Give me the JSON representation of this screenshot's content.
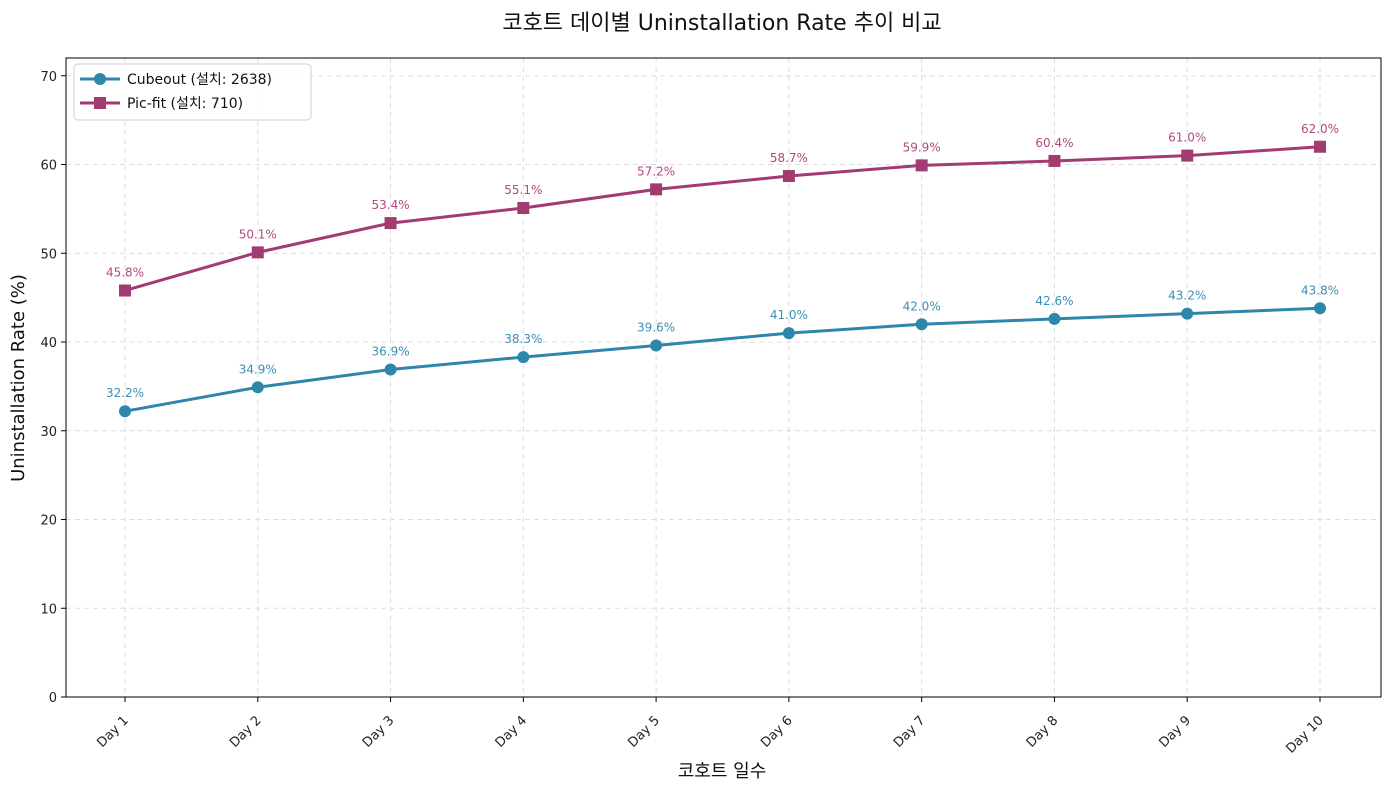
{
  "chart_data": {
    "type": "line",
    "title": "코호트 데이별 Uninstallation Rate 추이 비교",
    "xlabel": "코호트 일수",
    "ylabel": "Uninstallation Rate (%)",
    "categories": [
      "Day 1",
      "Day 2",
      "Day 3",
      "Day 4",
      "Day 5",
      "Day 6",
      "Day 7",
      "Day 8",
      "Day 9",
      "Day 10"
    ],
    "ylim": [
      0,
      72
    ],
    "yticks": [
      0,
      10,
      20,
      30,
      40,
      50,
      60,
      70
    ],
    "grid": true,
    "legend_position": "top-left",
    "series": [
      {
        "name": "Cubeout (설치: 2638)",
        "color": "#2e86ab",
        "label_color": "#3a8fb7",
        "marker": "circle",
        "values": [
          32.2,
          34.9,
          36.9,
          38.3,
          39.6,
          41.0,
          42.0,
          42.6,
          43.2,
          43.8
        ],
        "labels": [
          "32.2%",
          "34.9%",
          "36.9%",
          "38.3%",
          "39.6%",
          "41.0%",
          "42.0%",
          "42.6%",
          "43.2%",
          "43.8%"
        ]
      },
      {
        "name": "Pic-fit (설치: 710)",
        "color": "#a23b72",
        "label_color": "#b04a80",
        "marker": "square",
        "values": [
          45.8,
          50.1,
          53.4,
          55.1,
          57.2,
          58.7,
          59.9,
          60.4,
          61.0,
          62.0
        ],
        "labels": [
          "45.8%",
          "50.1%",
          "53.4%",
          "55.1%",
          "57.2%",
          "58.7%",
          "59.9%",
          "60.4%",
          "61.0%",
          "62.0%"
        ]
      }
    ]
  }
}
